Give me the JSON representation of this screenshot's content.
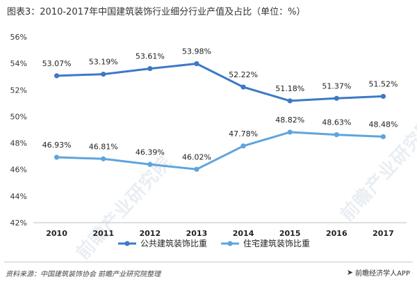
{
  "title": "图表3：2010-2017年中国建筑装饰行业细分行业产值及占比（单位：%）",
  "chart_data": {
    "type": "line",
    "categories": [
      "2010",
      "2011",
      "2012",
      "2013",
      "2014",
      "2015",
      "2016",
      "2017"
    ],
    "ylim": [
      42,
      56
    ],
    "yticks": [
      42,
      44,
      46,
      48,
      50,
      52,
      54,
      56
    ],
    "ytick_labels": [
      "42%",
      "44%",
      "46%",
      "48%",
      "50%",
      "52%",
      "54%",
      "56%"
    ],
    "series": [
      {
        "name": "公共建筑装饰比重",
        "color": "#3d79c4",
        "values": [
          53.07,
          53.19,
          53.61,
          53.98,
          52.22,
          51.18,
          51.37,
          51.52
        ],
        "labels": [
          "53.07%",
          "53.19%",
          "53.61%",
          "53.98%",
          "52.22%",
          "51.18%",
          "51.37%",
          "51.52%"
        ]
      },
      {
        "name": "住宅建筑装饰比重",
        "color": "#5ea4dd",
        "values": [
          46.93,
          46.81,
          46.39,
          46.02,
          47.78,
          48.82,
          48.63,
          48.48
        ],
        "labels": [
          "46.93%",
          "46.81%",
          "46.39%",
          "46.02%",
          "47.78%",
          "48.82%",
          "48.63%",
          "48.48%"
        ]
      }
    ],
    "legend_position": "bottom-center",
    "grid": false
  },
  "watermark": [
    "前瞻产业研究院",
    "前瞻产业研究院"
  ],
  "footer": {
    "source": "资料来源：中国建筑装饰协会 前瞻产业研究院整理",
    "brand": "前瞻经济学人APP",
    "brand_icon": "fish-logo-icon"
  }
}
